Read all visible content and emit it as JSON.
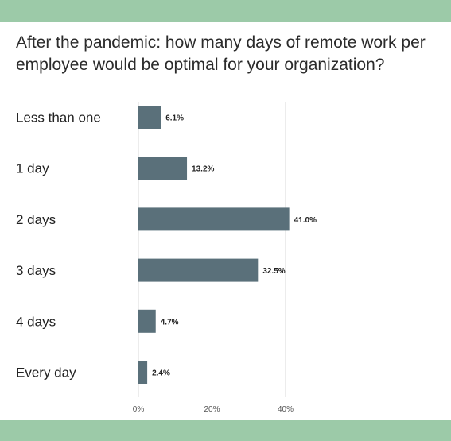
{
  "title": "After the pandemic: how many days of remote work per employee would be optimal for your organization?",
  "colors": {
    "band": "#9ccaa8",
    "bar": "#5a707a",
    "grid": "#d9d9d9"
  },
  "chart_data": {
    "type": "bar",
    "orientation": "horizontal",
    "title": "After the pandemic: how many days of remote work per employee would be optimal for your organization?",
    "categories": [
      "Less than one",
      "1 day",
      "2 days",
      "3 days",
      "4 days",
      "Every day"
    ],
    "values": [
      6.1,
      13.2,
      41.0,
      32.5,
      4.7,
      2.4
    ],
    "value_labels": [
      "6.1%",
      "13.2%",
      "41.0%",
      "32.5%",
      "4.7%",
      "2.4%"
    ],
    "xticks": [
      0,
      20,
      40
    ],
    "xtick_labels": [
      "0%",
      "20%",
      "40%"
    ],
    "xlim": [
      0,
      45
    ],
    "grid": true,
    "legend": "none"
  }
}
